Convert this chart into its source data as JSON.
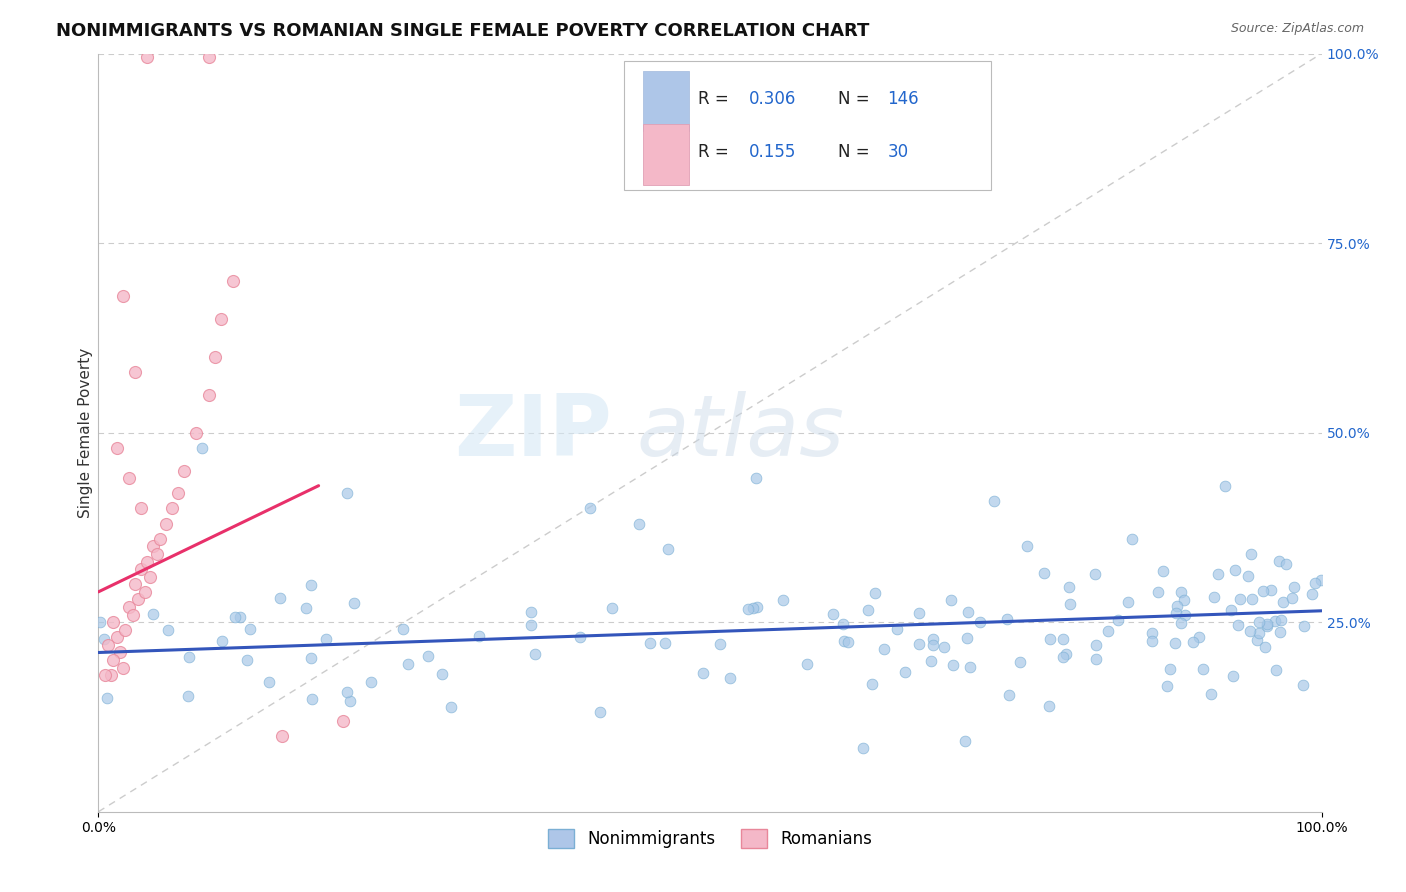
{
  "title": "NONIMMIGRANTS VS ROMANIAN SINGLE FEMALE POVERTY CORRELATION CHART",
  "source": "Source: ZipAtlas.com",
  "ylabel": "Single Female Poverty",
  "xlim": [
    0.0,
    1.0
  ],
  "ylim": [
    0.0,
    1.0
  ],
  "x_tick_labels": [
    "0.0%",
    "100.0%"
  ],
  "y_tick_labels_right": [
    "100.0%",
    "75.0%",
    "50.0%",
    "25.0%"
  ],
  "y_tick_positions_right": [
    1.0,
    0.75,
    0.5,
    0.25
  ],
  "nonimmigrant_color": "#a8c8e8",
  "nonimmigrant_edge": "#7bafd4",
  "romanian_color": "#f4b8c8",
  "romanian_edge": "#e8879a",
  "trendline_nonimmigrant_color": "#3355bb",
  "trendline_romanian_color": "#e8306a",
  "diagonal_color": "#cccccc",
  "grid_color": "#cccccc",
  "background_color": "#ffffff",
  "watermark_zip": "ZIP",
  "watermark_atlas": "atlas",
  "R_nonimmigrant": 0.306,
  "N_nonimmigrant": 146,
  "R_romanian": 0.155,
  "N_romanian": 30,
  "title_fontsize": 13,
  "axis_label_fontsize": 11,
  "tick_fontsize": 10,
  "source_fontsize": 9,
  "legend_box_color_non": "#aec6e8",
  "legend_box_color_rom": "#f4b8c8"
}
